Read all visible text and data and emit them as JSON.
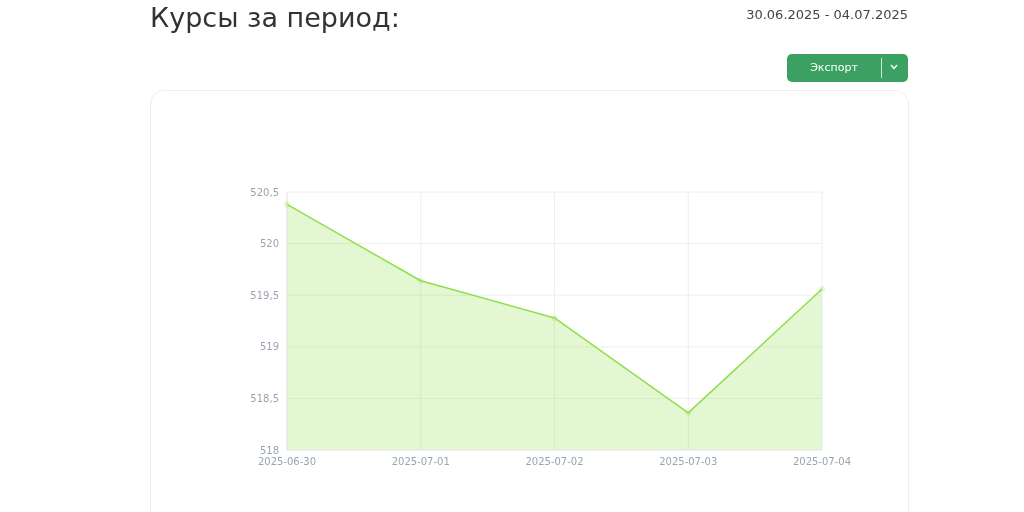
{
  "chart_data": {
    "type": "area",
    "title": "Курсы за период:",
    "subtitle": "30.06.2025 - 04.07.2025",
    "annotations": [
      "Экспорт"
    ],
    "categories": [
      "2025-06-30",
      "2025-07-01",
      "2025-07-02",
      "2025-07-03",
      "2025-07-04"
    ],
    "series": [
      {
        "color": "#8ee04a",
        "values": [
          520.38,
          519.64,
          519.28,
          518.36,
          519.56
        ]
      }
    ],
    "ylim": [
      518,
      520.5
    ],
    "yticks": [
      518,
      {
        "value": 518.5,
        "label": "518,5"
      },
      519,
      {
        "value": 519.5,
        "label": "519,5"
      },
      520,
      {
        "value": 520.5,
        "label": "520,5"
      }
    ],
    "grid": true,
    "marker": "circle",
    "line_style": "solid"
  }
}
